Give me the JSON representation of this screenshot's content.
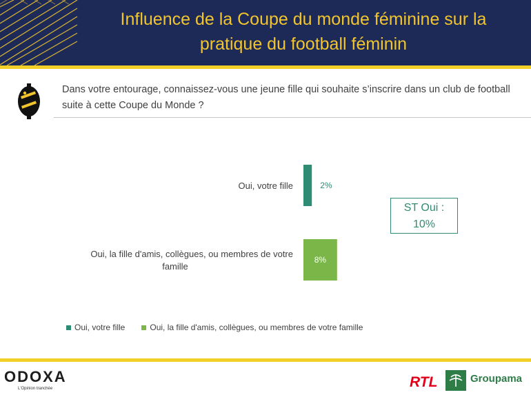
{
  "header": {
    "title_line1": "Influence de la Coupe du monde féminine sur la",
    "title_line2": "pratique du football féminin"
  },
  "question": "Dans votre entourage, connaissez-vous une jeune fille qui souhaite s’inscrire dans un club de football suite à cette Coupe du Monde ?",
  "st_box": {
    "line1": "ST Oui :",
    "line2": "10%"
  },
  "chart_data": {
    "type": "bar",
    "orientation": "horizontal",
    "categories": [
      "Oui, votre fille",
      "Oui, la fille d'amis, collègues, ou membres de votre famille"
    ],
    "category_lines": [
      [
        "Oui, votre fille"
      ],
      [
        "Oui, la fille d'amis, collègues, ou membres de votre",
        "famille"
      ]
    ],
    "values": [
      2,
      8
    ],
    "labels": [
      "2%",
      "8%"
    ],
    "colors": [
      "#2e8b74",
      "#7ab648"
    ],
    "legend": [
      "Oui, votre fille",
      "Oui, la fille d'amis, collègues, ou membres de votre famille"
    ],
    "legend_position": "bottom",
    "unit": "%"
  },
  "footer": {
    "brand": "ODOXA",
    "tagline": "L'Opinion tranchée",
    "partner1": "RTL",
    "partner2": "Groupama"
  },
  "colors": {
    "navy": "#1d2a57",
    "gold": "#f2c52e",
    "teal": "#2e8b74",
    "green": "#7ab648"
  }
}
